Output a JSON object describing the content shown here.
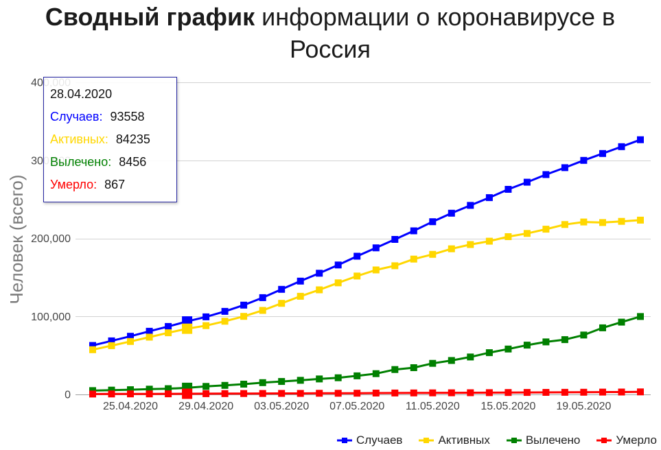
{
  "chart_data": {
    "type": "line",
    "title": "Сводный график информации о коронавирусе в Россия",
    "title_bold": "Сводный график",
    "ylabel": "Человек (всего)",
    "ylim": [
      0,
      400000
    ],
    "yticks": [
      0,
      100000,
      200000,
      300000,
      400000
    ],
    "ytick_labels": [
      "0",
      "100,000",
      "200,000",
      "300,000",
      "400,000"
    ],
    "xtick_labels": [
      "25.04.2020",
      "29.04.2020",
      "03.05.2020",
      "07.05.2020",
      "11.05.2020",
      "15.05.2020",
      "19.05.2020"
    ],
    "grid": true,
    "legend": "bottom-right",
    "x": [
      "23.04.2020",
      "24.04.2020",
      "25.04.2020",
      "26.04.2020",
      "27.04.2020",
      "28.04.2020",
      "29.04.2020",
      "30.04.2020",
      "01.05.2020",
      "02.05.2020",
      "03.05.2020",
      "04.05.2020",
      "05.05.2020",
      "06.05.2020",
      "07.05.2020",
      "08.05.2020",
      "09.05.2020",
      "10.05.2020",
      "11.05.2020",
      "12.05.2020",
      "13.05.2020",
      "14.05.2020",
      "15.05.2020",
      "16.05.2020",
      "17.05.2020",
      "18.05.2020",
      "19.05.2020",
      "20.05.2020",
      "21.05.2020",
      "22.05.2020"
    ],
    "series": [
      {
        "name": "Случаев",
        "color": "#0000ff",
        "values": [
          62773,
          68622,
          74588,
          80949,
          87147,
          93558,
          99399,
          106498,
          114431,
          124054,
          134686,
          145268,
          155370,
          165929,
          177160,
          187859,
          198676,
          209688,
          221344,
          232243,
          242271,
          252245,
          262843,
          272043,
          281752,
          290678,
          299941,
          308705,
          317554,
          326448
        ]
      },
      {
        "name": "Активных",
        "color": "#ffd700",
        "values": [
          57327,
          62500,
          67883,
          73435,
          79007,
          84235,
          88141,
          93806,
          100042,
          107701,
          116767,
          125817,
          134054,
          143065,
          151732,
          159528,
          164933,
          173467,
          179534,
          186615,
          192056,
          196410,
          202199,
          206340,
          211748,
          217747,
          220974,
          220341,
          221774,
          223374
        ]
      },
      {
        "name": "Вылечено",
        "color": "#008000",
        "values": [
          4891,
          5507,
          6024,
          6767,
          7346,
          8456,
          10286,
          11619,
          13220,
          15131,
          16639,
          18095,
          19865,
          21327,
          23803,
          26608,
          31916,
          34306,
          39801,
          43512,
          48003,
          53530,
          58226,
          63166,
          67373,
          70209,
          76130,
          85392,
          92681,
          99825
        ]
      },
      {
        "name": "Умерло",
        "color": "#ff0000",
        "values": [
          555,
          615,
          681,
          747,
          794,
          867,
          972,
          1073,
          1169,
          1222,
          1280,
          1356,
          1451,
          1537,
          1625,
          1723,
          1827,
          1915,
          2009,
          2116,
          2212,
          2305,
          2418,
          2537,
          2631,
          2722,
          2837,
          2972,
          3099,
          3249
        ]
      }
    ],
    "tooltip": {
      "date": "28.04.2020",
      "rows": [
        {
          "label": "Случаев:",
          "value": 93558
        },
        {
          "label": "Активных:",
          "value": 84235
        },
        {
          "label": "Вылечено:",
          "value": 8456
        },
        {
          "label": "Умерло:",
          "value": 867
        }
      ]
    }
  }
}
